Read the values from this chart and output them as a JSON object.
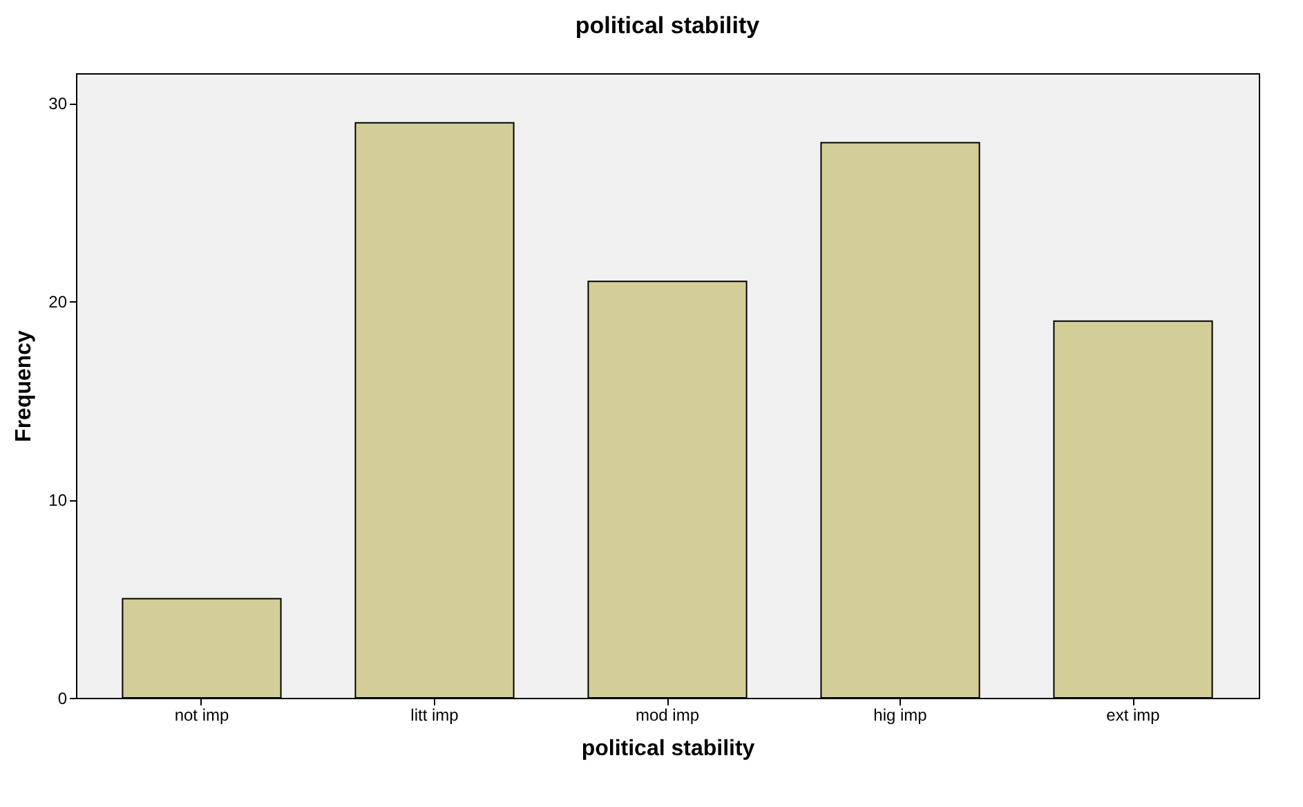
{
  "chart_data": {
    "type": "bar",
    "title": "political stability",
    "xlabel": "political stability",
    "ylabel": "Frequency",
    "categories": [
      "not imp",
      "litt imp",
      "mod imp",
      "hig imp",
      "ext imp"
    ],
    "values": [
      5,
      29,
      21,
      28,
      19
    ],
    "color": "#d3ce98",
    "ylim": [
      0,
      31.5
    ],
    "yticks": [
      0,
      10,
      20,
      30
    ],
    "grid": false
  }
}
